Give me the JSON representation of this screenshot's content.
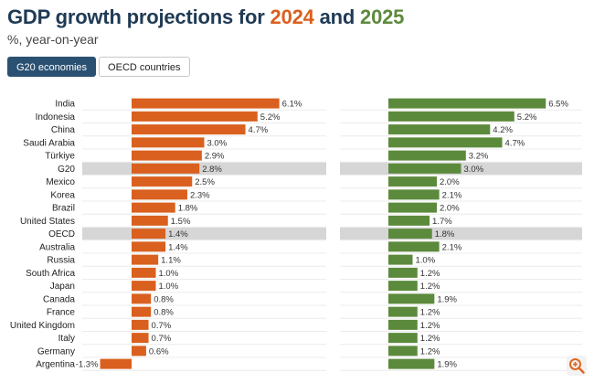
{
  "title": {
    "prefix": "GDP growth projections for ",
    "year1": "2024",
    "middle": " and ",
    "year2": "2025"
  },
  "subtitle": "%, year-on-year",
  "tabs": [
    {
      "label": "G20 economies",
      "active": true
    },
    {
      "label": "OECD countries",
      "active": false
    }
  ],
  "colors": {
    "bar2024": "#d9601e",
    "bar2025": "#5c8a3c",
    "highlight": "#d6d6d6",
    "title": "#1f3a55"
  },
  "chart_data": {
    "type": "bar",
    "orientation": "horizontal",
    "title": "GDP growth projections for 2024 and 2025",
    "subtitle": "%, year-on-year",
    "categories": [
      "India",
      "Indonesia",
      "China",
      "Saudi Arabia",
      "Türkiye",
      "G20",
      "Mexico",
      "Korea",
      "Brazil",
      "United States",
      "OECD",
      "Australia",
      "Russia",
      "South Africa",
      "Japan",
      "Canada",
      "France",
      "United Kingdom",
      "Italy",
      "Germany",
      "Argentina"
    ],
    "highlighted": [
      "G20",
      "OECD"
    ],
    "series": [
      {
        "name": "2024",
        "values": [
          6.1,
          5.2,
          4.7,
          3.0,
          2.9,
          2.8,
          2.5,
          2.3,
          1.8,
          1.5,
          1.4,
          1.4,
          1.1,
          1.0,
          1.0,
          0.8,
          0.8,
          0.7,
          0.7,
          0.6,
          -1.3
        ],
        "labels": [
          "6.1%",
          "5.2%",
          "4.7%",
          "3.0%",
          "2.9%",
          "2.8%",
          "2.5%",
          "2.3%",
          "1.8%",
          "1.5%",
          "1.4%",
          "1.4%",
          "1.1%",
          "1.0%",
          "1.0%",
          "0.8%",
          "0.8%",
          "0.7%",
          "0.7%",
          "0.6%",
          "-1.3%"
        ]
      },
      {
        "name": "2025",
        "values": [
          6.5,
          5.2,
          4.2,
          4.7,
          3.2,
          3.0,
          2.0,
          2.1,
          2.0,
          1.7,
          1.8,
          2.1,
          1.0,
          1.2,
          1.2,
          1.9,
          1.2,
          1.2,
          1.2,
          1.2,
          1.9
        ],
        "labels": [
          "6.5%",
          "5.2%",
          "4.2%",
          "4.7%",
          "3.2%",
          "3.0%",
          "2.0%",
          "2.1%",
          "2.0%",
          "1.7%",
          "1.8%",
          "2.1%",
          "1.0%",
          "1.2%",
          "1.2%",
          "1.9%",
          "1.2%",
          "1.2%",
          "1.2%",
          "1.2%",
          "1.9%"
        ]
      }
    ],
    "xlabel": "",
    "ylabel": "",
    "grid": true,
    "legend": "none"
  },
  "zoom_icon": "zoom-in-icon"
}
